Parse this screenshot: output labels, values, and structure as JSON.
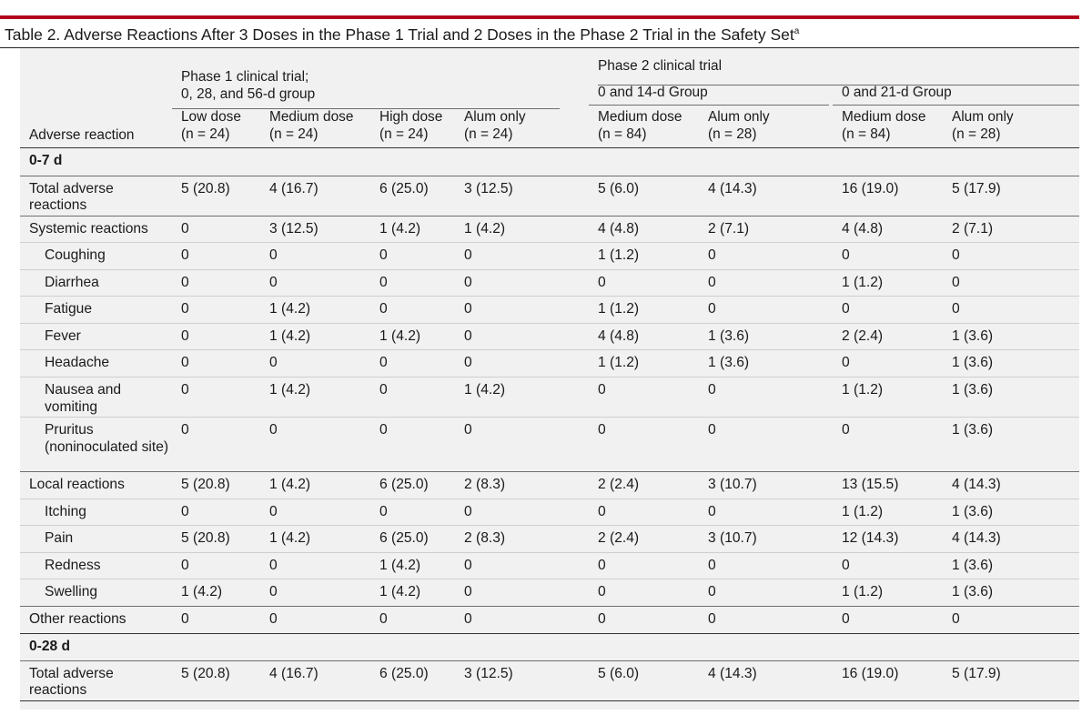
{
  "table": {
    "title": "Table 2. Adverse Reactions After 3 Doses in the Phase 1 Trial and 2 Doses in the Phase 2 Trial in the Safety Set",
    "title_footnote": "a",
    "phase1_header": [
      "Phase 1 clinical trial;",
      "0, 28, and 56-d group"
    ],
    "phase2_header": "Phase 2 clinical trial",
    "group_14d": "0 and 14-d Group",
    "group_21d": "0 and 21-d Group",
    "stub_header": "Adverse reaction",
    "columns": [
      {
        "label": "Low dose",
        "n": "(n = 24)"
      },
      {
        "label": "Medium dose",
        "n": "(n = 24)"
      },
      {
        "label": "High dose",
        "n": "(n = 24)"
      },
      {
        "label": "Alum only",
        "n": "(n = 24)"
      },
      {
        "label": "Medium dose",
        "n": "(n = 84)"
      },
      {
        "label": "Alum only",
        "n": "(n = 28)"
      },
      {
        "label": "Medium dose",
        "n": "(n = 84)"
      },
      {
        "label": "Alum only",
        "n": "(n = 28)"
      }
    ],
    "sections": [
      {
        "label": "0-7 d",
        "rows": [
          {
            "name": "Total adverse reactions",
            "indent": false,
            "values": [
              "5 (20.8)",
              "4 (16.7)",
              "6 (25.0)",
              "3 (12.5)",
              "5 (6.0)",
              "4 (14.3)",
              "16 (19.0)",
              "5 (17.9)"
            ]
          },
          {
            "name": "Systemic reactions",
            "indent": false,
            "values": [
              "0",
              "3 (12.5)",
              "1 (4.2)",
              "1 (4.2)",
              "4 (4.8)",
              "2 (7.1)",
              "4 (4.8)",
              "2 (7.1)"
            ]
          },
          {
            "name": "Coughing",
            "indent": true,
            "values": [
              "0",
              "0",
              "0",
              "0",
              "1 (1.2)",
              "0",
              "0",
              "0"
            ]
          },
          {
            "name": "Diarrhea",
            "indent": true,
            "values": [
              "0",
              "0",
              "0",
              "0",
              "0",
              "0",
              "1 (1.2)",
              "0"
            ]
          },
          {
            "name": "Fatigue",
            "indent": true,
            "values": [
              "0",
              "1 (4.2)",
              "0",
              "0",
              "1 (1.2)",
              "0",
              "0",
              "0"
            ]
          },
          {
            "name": "Fever",
            "indent": true,
            "values": [
              "0",
              "1 (4.2)",
              "1 (4.2)",
              "0",
              "4 (4.8)",
              "1 (3.6)",
              "2 (2.4)",
              "1 (3.6)"
            ]
          },
          {
            "name": "Headache",
            "indent": true,
            "values": [
              "0",
              "0",
              "0",
              "0",
              "1 (1.2)",
              "1 (3.6)",
              "0",
              "1 (3.6)"
            ]
          },
          {
            "name": "Nausea and vomiting",
            "indent": true,
            "values": [
              "0",
              "1 (4.2)",
              "0",
              "1 (4.2)",
              "0",
              "0",
              "1 (1.2)",
              "1 (3.6)"
            ]
          },
          {
            "name": "Pruritus (noninoculated site)",
            "indent": true,
            "values": [
              "0",
              "0",
              "0",
              "0",
              "0",
              "0",
              "0",
              "1 (3.6)"
            ]
          },
          {
            "name": "Local reactions",
            "indent": false,
            "values": [
              "5 (20.8)",
              "1 (4.2)",
              "6 (25.0)",
              "2 (8.3)",
              "2 (2.4)",
              "3 (10.7)",
              "13 (15.5)",
              "4 (14.3)"
            ]
          },
          {
            "name": "Itching",
            "indent": true,
            "values": [
              "0",
              "0",
              "0",
              "0",
              "0",
              "0",
              "1 (1.2)",
              "1 (3.6)"
            ]
          },
          {
            "name": "Pain",
            "indent": true,
            "values": [
              "5 (20.8)",
              "1 (4.2)",
              "6 (25.0)",
              "2 (8.3)",
              "2 (2.4)",
              "3 (10.7)",
              "12 (14.3)",
              "4 (14.3)"
            ]
          },
          {
            "name": "Redness",
            "indent": true,
            "values": [
              "0",
              "0",
              "1 (4.2)",
              "0",
              "0",
              "0",
              "0",
              "1 (3.6)"
            ]
          },
          {
            "name": "Swelling",
            "indent": true,
            "values": [
              "1 (4.2)",
              "0",
              "1 (4.2)",
              "0",
              "0",
              "0",
              "1 (1.2)",
              "1 (3.6)"
            ]
          },
          {
            "name": "Other reactions",
            "indent": false,
            "values": [
              "0",
              "0",
              "0",
              "0",
              "0",
              "0",
              "0",
              "0"
            ]
          }
        ]
      },
      {
        "label": "0-28 d",
        "rows": [
          {
            "name": "Total adverse reactions",
            "indent": false,
            "values": [
              "5 (20.8)",
              "4 (16.7)",
              "6 (25.0)",
              "3 (12.5)",
              "5 (6.0)",
              "4 (14.3)",
              "16 (19.0)",
              "5 (17.9)"
            ]
          }
        ]
      }
    ],
    "colors": {
      "accent_rule": "#b1001e",
      "table_background": "#f1f1f1"
    }
  }
}
